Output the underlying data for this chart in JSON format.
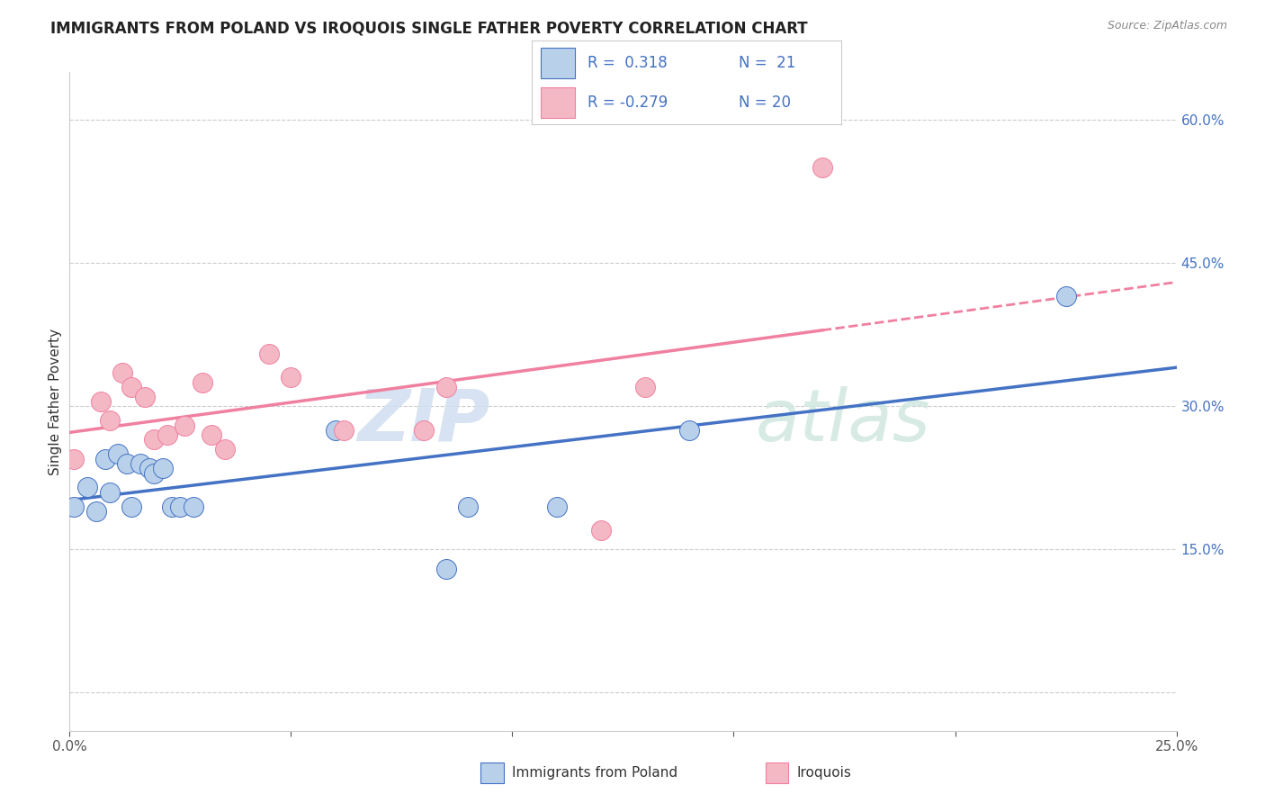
{
  "title": "IMMIGRANTS FROM POLAND VS IROQUOIS SINGLE FATHER POVERTY CORRELATION CHART",
  "source": "Source: ZipAtlas.com",
  "ylabel": "Single Father Poverty",
  "yticks": [
    0.0,
    0.15,
    0.3,
    0.45,
    0.6
  ],
  "ytick_labels": [
    "",
    "15.0%",
    "30.0%",
    "45.0%",
    "60.0%"
  ],
  "xlim": [
    0.0,
    0.25
  ],
  "ylim": [
    -0.04,
    0.65
  ],
  "poland_color": "#b8d0ea",
  "iroquois_color": "#f4b8c4",
  "poland_line_color": "#4472c4",
  "iroquois_line_color": "#f080a0",
  "watermark_zip": "ZIP",
  "watermark_atlas": "atlas",
  "background_color": "#ffffff",
  "grid_color": "#cccccc",
  "poland_x": [
    0.001,
    0.004,
    0.006,
    0.008,
    0.009,
    0.011,
    0.013,
    0.014,
    0.016,
    0.018,
    0.019,
    0.021,
    0.023,
    0.025,
    0.028,
    0.06,
    0.085,
    0.09,
    0.11,
    0.14,
    0.225
  ],
  "poland_y": [
    0.195,
    0.215,
    0.19,
    0.245,
    0.21,
    0.25,
    0.24,
    0.195,
    0.24,
    0.235,
    0.23,
    0.235,
    0.195,
    0.195,
    0.195,
    0.275,
    0.13,
    0.195,
    0.195,
    0.275,
    0.415
  ],
  "iroquois_x": [
    0.001,
    0.007,
    0.009,
    0.012,
    0.014,
    0.017,
    0.019,
    0.022,
    0.026,
    0.03,
    0.032,
    0.035,
    0.045,
    0.05,
    0.062,
    0.08,
    0.085,
    0.12,
    0.13,
    0.17
  ],
  "iroquois_y": [
    0.245,
    0.305,
    0.285,
    0.335,
    0.32,
    0.31,
    0.265,
    0.27,
    0.28,
    0.325,
    0.27,
    0.255,
    0.355,
    0.33,
    0.275,
    0.275,
    0.32,
    0.17,
    0.32,
    0.55
  ],
  "legend_text": [
    {
      "r": "R =  0.318",
      "n": "N =  21",
      "color": "#4472c4",
      "bg": "#b8d0ea"
    },
    {
      "r": "R = -0.279",
      "n": "N = 20",
      "color": "#4472c4",
      "bg": "#f4b8c4"
    }
  ]
}
